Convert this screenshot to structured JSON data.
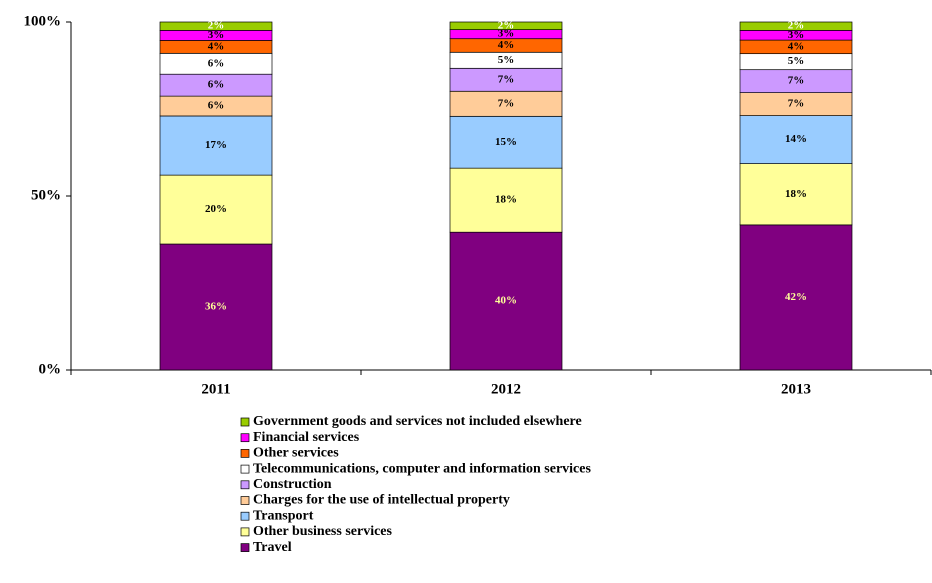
{
  "chart_data": {
    "type": "stacked_bar",
    "categories": [
      "2011",
      "2012",
      "2013"
    ],
    "ylim": [
      0,
      100
    ],
    "yticks": [
      {
        "value": 0,
        "label": "0%"
      },
      {
        "value": 50,
        "label": "50%"
      },
      {
        "value": 100,
        "label": "100%"
      }
    ],
    "series": [
      {
        "name": "Travel",
        "color": "#800080",
        "values": [
          36.2,
          39.6,
          41.7
        ],
        "value_labels": [
          "36%",
          "40%",
          "42%"
        ]
      },
      {
        "name": "Other business services",
        "color": "#ffff99",
        "values": [
          19.8,
          18.4,
          17.6
        ],
        "value_labels": [
          "20%",
          "18%",
          "18%"
        ]
      },
      {
        "name": "Transport",
        "color": "#99ccff",
        "values": [
          17.0,
          14.9,
          13.8
        ],
        "value_labels": [
          "17%",
          "15%",
          "14%"
        ]
      },
      {
        "name": "Charges for the use of intellectual property",
        "color": "#ffcc99",
        "values": [
          5.7,
          7.2,
          6.6
        ],
        "value_labels": [
          "6%",
          "7%",
          "7%"
        ]
      },
      {
        "name": "Construction",
        "color": "#cc99ff",
        "values": [
          6.3,
          6.6,
          6.6
        ],
        "value_labels": [
          "6%",
          "7%",
          "7%"
        ]
      },
      {
        "name": "Telecommunications, computer and information services",
        "color": "#ffffff",
        "values": [
          6.0,
          4.6,
          4.6
        ],
        "value_labels": [
          "6%",
          "5%",
          "5%"
        ]
      },
      {
        "name": "Other services",
        "color": "#ff6600",
        "values": [
          3.7,
          3.9,
          3.9
        ],
        "value_labels": [
          "4%",
          "4%",
          "4%"
        ]
      },
      {
        "name": "Financial services",
        "color": "#ff00ff",
        "values": [
          2.9,
          2.6,
          2.8
        ],
        "value_labels": [
          "3%",
          "3%",
          "3%"
        ]
      },
      {
        "name": "Government goods and services not included elsewhere",
        "color": "#99cc00",
        "values": [
          2.4,
          2.2,
          2.4
        ],
        "value_labels": [
          "2%",
          "2%",
          "2%"
        ]
      }
    ]
  }
}
